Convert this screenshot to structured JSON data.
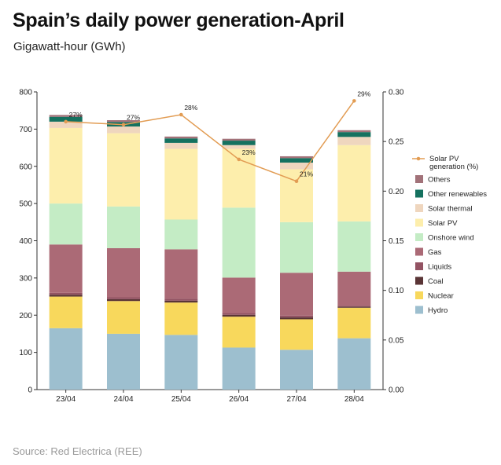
{
  "title": "Spain’s daily power generation-April",
  "subtitle": "Gigawatt-hour (GWh)",
  "source": "Source: Red Electrica (REE)",
  "chart_data": {
    "type": "bar",
    "stacked": true,
    "categories": [
      "23/04",
      "24/04",
      "25/04",
      "26/04",
      "27/04",
      "28/04"
    ],
    "ylim": [
      0,
      800
    ],
    "yticks": [
      "0",
      "100",
      "200",
      "300",
      "400",
      "500",
      "600",
      "700",
      "800"
    ],
    "y2lim": [
      0,
      0.3
    ],
    "y2ticks": [
      "0.00",
      "0.05",
      "0.10",
      "0.15",
      "0.20",
      "0.25",
      "0.30"
    ],
    "series": [
      {
        "name": "Hydro",
        "color": "#9dbfcf",
        "values": [
          165,
          150,
          147,
          113,
          107,
          138
        ]
      },
      {
        "name": "Nuclear",
        "color": "#f8d85c",
        "values": [
          85,
          88,
          87,
          83,
          82,
          82
        ]
      },
      {
        "name": "Coal",
        "color": "#5a3536",
        "values": [
          5,
          5,
          5,
          5,
          5,
          3
        ]
      },
      {
        "name": "Liquids",
        "color": "#935363",
        "values": [
          5,
          5,
          5,
          5,
          5,
          2
        ]
      },
      {
        "name": "Gas",
        "color": "#ab6a76",
        "values": [
          130,
          132,
          133,
          95,
          115,
          92
        ]
      },
      {
        "name": "Onshore wind",
        "color": "#c4ecc5",
        "values": [
          110,
          112,
          80,
          188,
          136,
          135
        ]
      },
      {
        "name": "Solar PV",
        "color": "#fdeeac",
        "values": [
          203,
          197,
          190,
          158,
          142,
          205
        ]
      },
      {
        "name": "Solar thermal",
        "color": "#efd6be",
        "values": [
          17,
          18,
          16,
          10,
          18,
          22
        ]
      },
      {
        "name": "Other renewables",
        "color": "#15715f",
        "values": [
          13,
          12,
          12,
          12,
          12,
          13
        ]
      },
      {
        "name": "Others",
        "color": "#a27279",
        "values": [
          5,
          5,
          5,
          5,
          5,
          5
        ]
      }
    ],
    "line": {
      "name": "Solar PV generation (%)",
      "legend_lines": [
        "Solar PV",
        "generation (%)"
      ],
      "color": "#e29c53",
      "values": [
        0.27,
        0.267,
        0.277,
        0.232,
        0.21,
        0.291
      ],
      "labels": [
        "27%",
        "27%",
        "28%",
        "23%",
        "21%",
        "29%"
      ]
    }
  }
}
